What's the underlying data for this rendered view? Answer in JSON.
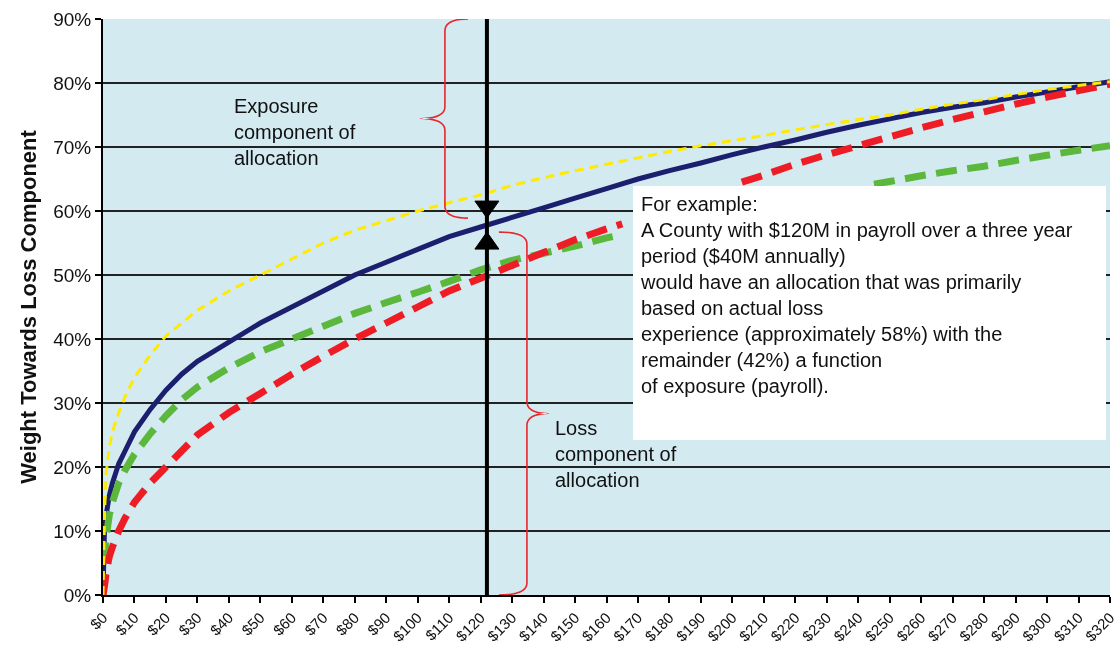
{
  "chart_data": {
    "type": "line",
    "ylabel": "Weight Towards Loss Component",
    "x": [
      0,
      0.5,
      1,
      2,
      3,
      5,
      7,
      10,
      15,
      20,
      25,
      30,
      40,
      50,
      60,
      70,
      80,
      90,
      100,
      110,
      120,
      130,
      140,
      150,
      160,
      170,
      180,
      190,
      200,
      210,
      220,
      230,
      240,
      250,
      260,
      270,
      280,
      290,
      300,
      310,
      320
    ],
    "xlim": [
      0,
      320
    ],
    "xticks": [
      {
        "value": 0,
        "label": "$0"
      },
      {
        "value": 10,
        "label": "$10"
      },
      {
        "value": 20,
        "label": "$20"
      },
      {
        "value": 30,
        "label": "$30"
      },
      {
        "value": 40,
        "label": "$40"
      },
      {
        "value": 50,
        "label": "$50"
      },
      {
        "value": 60,
        "label": "$60"
      },
      {
        "value": 70,
        "label": "$70"
      },
      {
        "value": 80,
        "label": "$80"
      },
      {
        "value": 90,
        "label": "$90"
      },
      {
        "value": 100,
        "label": "$100"
      },
      {
        "value": 110,
        "label": "$110"
      },
      {
        "value": 120,
        "label": "$120"
      },
      {
        "value": 130,
        "label": "$130"
      },
      {
        "value": 140,
        "label": "$140"
      },
      {
        "value": 150,
        "label": "$150"
      },
      {
        "value": 160,
        "label": "$160"
      },
      {
        "value": 170,
        "label": "$170"
      },
      {
        "value": 180,
        "label": "$180"
      },
      {
        "value": 190,
        "label": "$190"
      },
      {
        "value": 200,
        "label": "$200"
      },
      {
        "value": 210,
        "label": "$210"
      },
      {
        "value": 220,
        "label": "$220"
      },
      {
        "value": 230,
        "label": "$230"
      },
      {
        "value": 240,
        "label": "$240"
      },
      {
        "value": 250,
        "label": "$250"
      },
      {
        "value": 260,
        "label": "$260"
      },
      {
        "value": 270,
        "label": "$270"
      },
      {
        "value": 280,
        "label": "$280"
      },
      {
        "value": 290,
        "label": "$290"
      },
      {
        "value": 300,
        "label": "$300"
      },
      {
        "value": 310,
        "label": "$310"
      },
      {
        "value": 320,
        "label": "$320"
      }
    ],
    "ylim": [
      0,
      90
    ],
    "yticks": [
      {
        "value": 0,
        "label": "0%"
      },
      {
        "value": 10,
        "label": "10%"
      },
      {
        "value": 20,
        "label": "20%"
      },
      {
        "value": 30,
        "label": "30%"
      },
      {
        "value": 40,
        "label": "40%"
      },
      {
        "value": 50,
        "label": "50%"
      },
      {
        "value": 60,
        "label": "60%"
      },
      {
        "value": 70,
        "label": "70%"
      },
      {
        "value": 80,
        "label": "80%"
      },
      {
        "value": 90,
        "label": "90%"
      }
    ],
    "grid": "y",
    "series": [
      {
        "color": "#1b1f6e",
        "line_style": "solid",
        "values": [
          0,
          11,
          12.5,
          15.5,
          17.5,
          20.5,
          22.5,
          25.5,
          29,
          32,
          34.5,
          36.5,
          39.5,
          42.5,
          45,
          47.5,
          50,
          52,
          54,
          56,
          57.5,
          59,
          60.5,
          62,
          63.5,
          65,
          66.3,
          67.5,
          68.8,
          70,
          71.1,
          72.3,
          73.4,
          74.4,
          75.4,
          76.2,
          76.9,
          77.8,
          78.6,
          79.4,
          80.2
        ]
      },
      {
        "color": "#5cb83c",
        "line_style": "dashed",
        "x": [
          0,
          0.5,
          1,
          2,
          3,
          5,
          7,
          10,
          15,
          20,
          25,
          30,
          40,
          50,
          60,
          70,
          80,
          90,
          100,
          110,
          120,
          130,
          140,
          150,
          160,
          165,
          200,
          245,
          250,
          260,
          270,
          280,
          290,
          300,
          310,
          320
        ],
        "values": [
          0,
          6,
          9,
          12.5,
          14.5,
          17.5,
          19.5,
          22,
          25.2,
          28,
          30.5,
          32.5,
          35.5,
          38,
          40,
          42,
          44,
          45.7,
          47.3,
          49,
          50.8,
          52.3,
          53.4,
          54.5,
          55.8,
          56.3,
          null,
          64.2,
          64.6,
          65.5,
          66.3,
          67,
          67.9,
          68.7,
          69.5,
          70.2
        ]
      },
      {
        "color": "#ee1c24",
        "line_style": "dashed",
        "x": [
          0,
          0.5,
          1,
          2,
          3,
          5,
          7,
          10,
          15,
          20,
          25,
          30,
          40,
          50,
          60,
          70,
          80,
          90,
          100,
          110,
          120,
          130,
          140,
          150,
          160,
          165,
          185,
          203,
          210,
          220,
          230,
          240,
          250,
          260,
          270,
          280,
          290,
          300,
          310,
          320
        ],
        "values": [
          0,
          1.5,
          3.5,
          6,
          7.5,
          10,
          12,
          14.5,
          17.5,
          20,
          22.5,
          25,
          28.5,
          31.5,
          34.5,
          37.3,
          40,
          42.5,
          45,
          47.5,
          49.5,
          51.5,
          53.5,
          55.5,
          57.2,
          58,
          null,
          64.5,
          65.6,
          67.3,
          68.8,
          70.2,
          71.6,
          73,
          74.3,
          75.5,
          76.7,
          77.8,
          78.8,
          79.8
        ]
      },
      {
        "color": "#ffea00",
        "line_style": "dashed",
        "values": [
          0,
          13,
          19,
          23,
          25.5,
          28.5,
          31,
          34,
          37.5,
          40.5,
          42.5,
          44.5,
          47.5,
          50,
          52.5,
          55,
          57,
          58.5,
          60,
          61.3,
          62.5,
          64,
          65.2,
          66.3,
          67.3,
          68.3,
          69.3,
          70.2,
          71,
          71.8,
          72.7,
          73.5,
          74.3,
          75,
          75.9,
          76.7,
          77.4,
          78.2,
          79,
          79.6,
          80.2
        ]
      }
    ],
    "ref_lines": [
      {
        "axis": "x",
        "value": 122,
        "color": "#000000"
      }
    ],
    "annotations": [
      "Exposure\ncomponent of\nallocation",
      "Loss\ncomponent of\nallocation",
      "For example:\nA County with $120M in payroll over a three year\nperiod ($40M annually)\nwould have an allocation that was primarily\nbased on actual loss\nexperience (approximately 58%) with the\nremainder (42%) a function\nof exposure (payroll)."
    ]
  }
}
